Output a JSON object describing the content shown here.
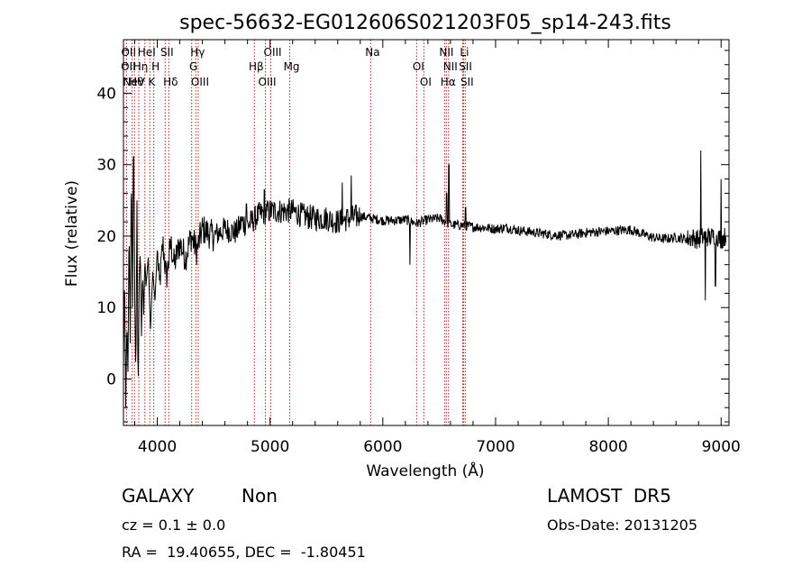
{
  "chart_data": {
    "type": "line",
    "title": "spec-56632-EG012606S021203F05_sp14-243.fits",
    "xlabel": "Wavelength (Å)",
    "ylabel": "Flux (relative)",
    "xlim": [
      3700,
      9070
    ],
    "ylim": [
      -6.5,
      47.5
    ],
    "xticks": [
      4000,
      5000,
      6000,
      7000,
      8000,
      9000
    ],
    "yticks": [
      0,
      10,
      20,
      30,
      40
    ],
    "grid": false,
    "line_color": "#000000",
    "marker_color": "#b22222",
    "line_markers": [
      {
        "label": "NeV",
        "wavelength": 3777,
        "row": 2
      },
      {
        "label": "OII",
        "wavelength": 3730,
        "row": 0
      },
      {
        "label": "HeI",
        "wavelength": 3890,
        "row": 0
      },
      {
        "label": "SII",
        "wavelength": 4070,
        "row": 0
      },
      {
        "label": "Hγ",
        "wavelength": 4342,
        "row": 0
      },
      {
        "label": "OII",
        "wavelength": 3727,
        "row": 1
      },
      {
        "label": "Hη",
        "wavelength": 3836,
        "row": 1
      },
      {
        "label": "H",
        "wavelength": 3969,
        "row": 1
      },
      {
        "label": "G",
        "wavelength": 4305,
        "row": 1
      },
      {
        "label": "Hθ",
        "wavelength": 3798,
        "row": 2
      },
      {
        "label": "K",
        "wavelength": 3934,
        "row": 2
      },
      {
        "label": "Hδ",
        "wavelength": 4102,
        "row": 2
      },
      {
        "label": "OIII",
        "wavelength": 4363,
        "row": 2
      },
      {
        "label": "OIII",
        "wavelength": 5007,
        "row": 0
      },
      {
        "label": "Hβ",
        "wavelength": 4861,
        "row": 1
      },
      {
        "label": "OIII",
        "wavelength": 4959,
        "row": 2
      },
      {
        "label": "Mg",
        "wavelength": 5175,
        "row": 1
      },
      {
        "label": "Na",
        "wavelength": 5893,
        "row": 0
      },
      {
        "label": "OI",
        "wavelength": 6300,
        "row": 1
      },
      {
        "label": "OI",
        "wavelength": 6364,
        "row": 2
      },
      {
        "label": "NII",
        "wavelength": 6548,
        "row": 0
      },
      {
        "label": "NII",
        "wavelength": 6583,
        "row": 1
      },
      {
        "label": "Hα",
        "wavelength": 6563,
        "row": 2
      },
      {
        "label": "Li",
        "wavelength": 6708,
        "row": 0
      },
      {
        "label": "SII",
        "wavelength": 6717,
        "row": 1
      },
      {
        "label": "SII",
        "wavelength": 6731,
        "row": 2
      }
    ],
    "marker_lines": [
      3727,
      3777,
      3798,
      3836,
      3890,
      3934,
      3969,
      4070,
      4102,
      4305,
      4342,
      4363,
      4861,
      4959,
      5007,
      5175,
      5893,
      6300,
      6364,
      6548,
      6563,
      6583,
      6708,
      6717,
      6731
    ],
    "spectrum_anchor_points": [
      [
        3700,
        2
      ],
      [
        3710,
        15
      ],
      [
        3720,
        -4
      ],
      [
        3730,
        8
      ],
      [
        3740,
        1
      ],
      [
        3750,
        22
      ],
      [
        3760,
        5
      ],
      [
        3770,
        30
      ],
      [
        3780,
        10
      ],
      [
        3790,
        36
      ],
      [
        3800,
        12
      ],
      [
        3810,
        0
      ],
      [
        3820,
        25
      ],
      [
        3830,
        -3
      ],
      [
        3840,
        14
      ],
      [
        3850,
        18
      ],
      [
        3860,
        6
      ],
      [
        3870,
        15
      ],
      [
        3880,
        9
      ],
      [
        3890,
        17
      ],
      [
        3900,
        13
      ],
      [
        3920,
        17
      ],
      [
        3940,
        7
      ],
      [
        3960,
        15
      ],
      [
        3980,
        11
      ],
      [
        4000,
        18
      ],
      [
        4020,
        13
      ],
      [
        4050,
        19
      ],
      [
        4080,
        14
      ],
      [
        4120,
        19
      ],
      [
        4150,
        16
      ],
      [
        4200,
        19
      ],
      [
        4250,
        17
      ],
      [
        4300,
        20
      ],
      [
        4350,
        18
      ],
      [
        4400,
        21
      ],
      [
        4500,
        20
      ],
      [
        4600,
        21
      ],
      [
        4700,
        20.5
      ],
      [
        4750,
        22
      ],
      [
        4800,
        21.5
      ],
      [
        4900,
        23
      ],
      [
        5000,
        23.5
      ],
      [
        5100,
        23.5
      ],
      [
        5200,
        23.5
      ],
      [
        5300,
        22.8
      ],
      [
        5400,
        22.5
      ],
      [
        5500,
        22.5
      ],
      [
        5600,
        22
      ],
      [
        5700,
        22.5
      ],
      [
        5800,
        22.8
      ],
      [
        5900,
        22.5
      ],
      [
        6000,
        22.2
      ],
      [
        6100,
        22.2
      ],
      [
        6200,
        22.3
      ],
      [
        6300,
        21.8
      ],
      [
        6400,
        22.3
      ],
      [
        6500,
        22.5
      ],
      [
        6600,
        21.6
      ],
      [
        6700,
        21.5
      ],
      [
        6800,
        21.3
      ],
      [
        6900,
        21.2
      ],
      [
        7000,
        21
      ],
      [
        7100,
        21.2
      ],
      [
        7200,
        20.8
      ],
      [
        7300,
        20.6
      ],
      [
        7400,
        20.4
      ],
      [
        7500,
        20.2
      ],
      [
        7600,
        20.1
      ],
      [
        7700,
        20.2
      ],
      [
        7800,
        20.5
      ],
      [
        7900,
        20.6
      ],
      [
        8000,
        20.7
      ],
      [
        8100,
        20.8
      ],
      [
        8200,
        20.9
      ],
      [
        8300,
        20.3
      ],
      [
        8400,
        19.8
      ],
      [
        8500,
        19.6
      ],
      [
        8600,
        19.8
      ],
      [
        8700,
        19.6
      ],
      [
        8750,
        19.8
      ],
      [
        8800,
        19.5
      ],
      [
        8850,
        20
      ],
      [
        8900,
        19.8
      ],
      [
        8950,
        20.2
      ],
      [
        9000,
        19.5
      ],
      [
        9040,
        20
      ]
    ],
    "spectrum_features": [
      {
        "wavelength": 4790,
        "flux": 24.5
      },
      {
        "wavelength": 4950,
        "flux": 26.5
      },
      {
        "wavelength": 5640,
        "flux": 27.5
      },
      {
        "wavelength": 5720,
        "flux": 28.5
      },
      {
        "wavelength": 6240,
        "flux": 16
      },
      {
        "wavelength": 6565,
        "flux": 26
      },
      {
        "wavelength": 6585,
        "flux": 30
      },
      {
        "wavelength": 6735,
        "flux": 24
      },
      {
        "wavelength": 8820,
        "flux": 32
      },
      {
        "wavelength": 8860,
        "flux": 11
      },
      {
        "wavelength": 8950,
        "flux": 13
      },
      {
        "wavelength": 9000,
        "flux": 28
      }
    ]
  },
  "info": {
    "class_label": "GALAXY",
    "class_sub": "Non",
    "survey": "LAMOST  DR5",
    "cz": "cz = 0.1 ± 0.0",
    "obs_date": "Obs-Date: 20131205",
    "radec": "RA =  19.40655, DEC =  -1.80451"
  }
}
